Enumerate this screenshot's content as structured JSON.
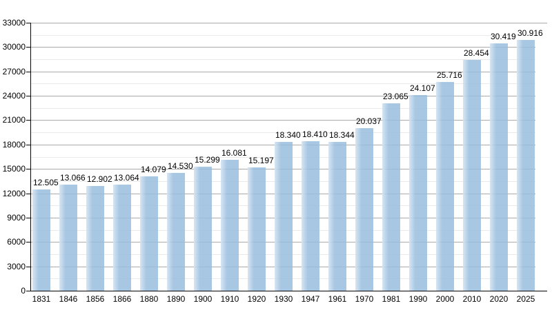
{
  "chart_data": {
    "type": "bar",
    "title": "",
    "xlabel": "",
    "ylabel": "",
    "categories": [
      "1831",
      "1846",
      "1856",
      "1866",
      "1880",
      "1890",
      "1900",
      "1910",
      "1920",
      "1930",
      "1947",
      "1961",
      "1970",
      "1981",
      "1990",
      "2000",
      "2010",
      "2020",
      "2025"
    ],
    "values": [
      12505,
      13066,
      12902,
      13064,
      14079,
      14530,
      15299,
      16081,
      15197,
      18340,
      18410,
      18344,
      20037,
      23065,
      24107,
      25716,
      28454,
      30419,
      30916
    ],
    "value_labels": [
      "12.505",
      "13.066",
      "12.902",
      "13.064",
      "14.079",
      "14.530",
      "15.299",
      "16.081",
      "15.197",
      "18.340",
      "18.410",
      "18.344",
      "20.037",
      "23.065",
      "24.107",
      "25.716",
      "28.454",
      "30.419",
      "30.916"
    ],
    "ylim": [
      0,
      33000
    ],
    "y_major_step": 3000,
    "y_minor_step": 1500,
    "y_tick_labels": [
      "0",
      "3000",
      "6000",
      "9000",
      "12000",
      "15000",
      "18000",
      "21000",
      "24000",
      "27000",
      "30000",
      "33000"
    ],
    "grid": true,
    "legend": "none",
    "colors": {
      "bar_fill": "#aecbe5",
      "bar_left_highlight": "#e3eef7",
      "grid_major": "#aaaaaa",
      "grid_minor": "#e9e9e9",
      "axis": "#000000",
      "text": "#000000",
      "background": "#ffffff"
    }
  }
}
